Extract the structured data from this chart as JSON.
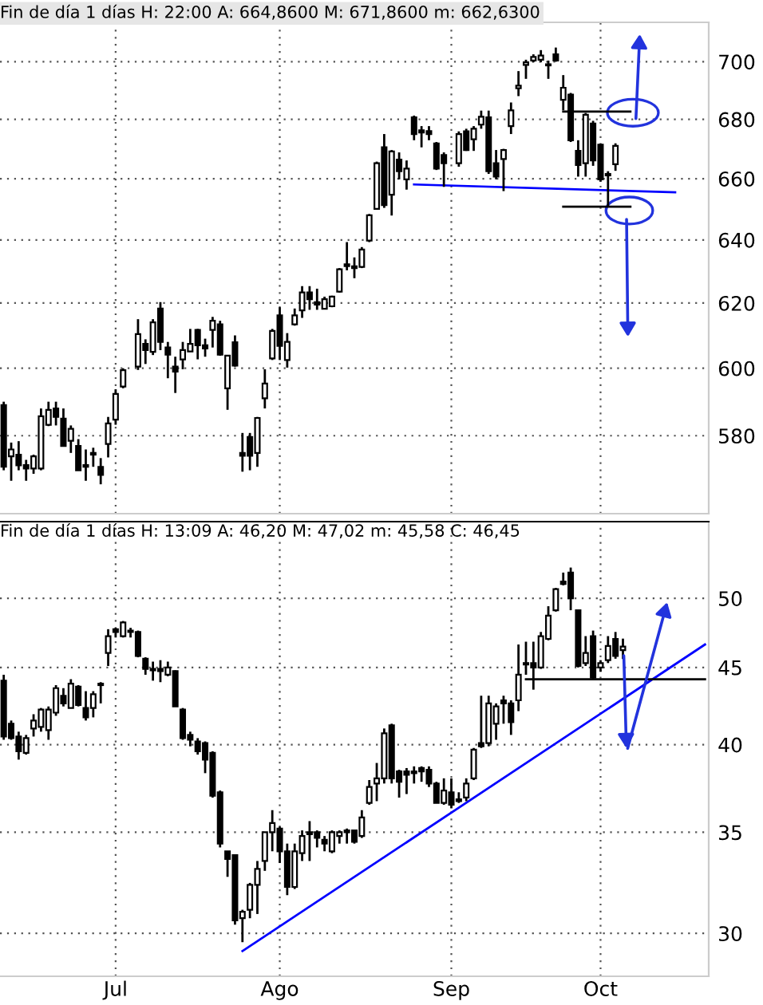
{
  "chart_data": [
    {
      "type": "candlestick",
      "title": "Fin de día 1 días H: 22:00 A: 664,8600 M: 671,8600 m: 662,6300",
      "log": true,
      "grid": true,
      "tick_labels": "y",
      "categories": [
        null,
        null,
        null,
        null,
        null,
        null,
        null,
        null,
        null,
        null,
        null,
        null,
        null,
        null,
        null,
        null,
        null,
        null,
        null,
        null,
        null,
        null,
        null,
        null,
        null,
        null,
        null,
        null,
        null,
        null,
        null,
        null,
        null,
        null,
        null,
        null,
        null,
        null,
        null,
        null,
        null,
        null,
        null,
        null,
        null,
        null,
        null,
        null,
        null,
        null,
        null,
        null,
        null,
        null,
        null,
        null,
        null,
        null,
        null,
        null,
        null,
        null,
        null,
        null,
        null,
        null,
        null,
        null,
        null,
        null,
        null,
        null,
        null,
        null,
        null,
        null,
        null,
        null,
        null,
        null,
        null,
        null,
        null,
        null,
        null,
        null,
        null,
        null,
        null,
        null,
        null,
        null,
        null,
        null,
        null
      ],
      "ylim": [
        557.7,
        714
      ],
      "yticks": [
        580,
        600,
        620,
        640,
        660,
        680,
        700
      ],
      "ohlc": [
        [
          589,
          590,
          570,
          571
        ],
        [
          574,
          578,
          567,
          576
        ],
        [
          574.5,
          578.4,
          570,
          571.4
        ],
        [
          571.5,
          573,
          567,
          570.5
        ],
        [
          570.5,
          574.5,
          569,
          574
        ],
        [
          570.5,
          588,
          570,
          585.7
        ],
        [
          583.2,
          590,
          582.8,
          587.6
        ],
        [
          588,
          590,
          583,
          585.5
        ],
        [
          585,
          588,
          577,
          577
        ],
        [
          578.5,
          583,
          575,
          582
        ],
        [
          577,
          579,
          570,
          570
        ],
        [
          571.5,
          576,
          567,
          571
        ],
        [
          575,
          576.5,
          571,
          574.5
        ],
        [
          571,
          573.5,
          566,
          568.7
        ],
        [
          577.6,
          585.5,
          573.7,
          583.6
        ],
        [
          584.7,
          593.7,
          583.2,
          592.3
        ],
        [
          594.5,
          600,
          594,
          599.4
        ],
        null,
        [
          600.5,
          615,
          599.5,
          610.4
        ],
        [
          607.4,
          608.8,
          601.3,
          605.5
        ],
        [
          605,
          615,
          604,
          614
        ],
        [
          618.3,
          620.3,
          605.5,
          608
        ],
        [
          606.3,
          608,
          597,
          604.1
        ],
        [
          600.5,
          603.5,
          592.6,
          599
        ],
        [
          602.7,
          608,
          599.7,
          605.5
        ],
        [
          605.1,
          612,
          605,
          607.4
        ],
        [
          611.7,
          612,
          602.7,
          607
        ],
        [
          607,
          609,
          603.5,
          606
        ],
        [
          611.7,
          615.7,
          606.3,
          614.5
        ],
        [
          613.4,
          614.5,
          603.8,
          604.1
        ],
        [
          594,
          604,
          587.6,
          603.8
        ],
        [
          607.9,
          610,
          600.5,
          600.8
        ],
        [
          575,
          580.8,
          569.6,
          574.2
        ],
        [
          579.6,
          580.8,
          570,
          574.2
        ],
        [
          575,
          585.5,
          571,
          585.2
        ],
        [
          591,
          599.7,
          588,
          595.4
        ],
        [
          603,
          612,
          602.5,
          611.4
        ],
        [
          616.2,
          618.7,
          602.5,
          606.8
        ],
        [
          602.5,
          610.7,
          600.2,
          608
        ],
        [
          613.4,
          618.3,
          613,
          616.2
        ],
        [
          617.7,
          625.3,
          615.4,
          623.3
        ],
        [
          623.3,
          625.3,
          617.9,
          621.2
        ],
        [
          620.3,
          624.5,
          617.9,
          619.5
        ],
        [
          618.2,
          622,
          618,
          621.2
        ],
        [
          619,
          622.3,
          618.7,
          622
        ],
        [
          623.6,
          631,
          623.3,
          630.6
        ],
        [
          632.2,
          639.3,
          630.3,
          631.6
        ],
        [
          631.6,
          634.4,
          627.8,
          631
        ],
        [
          631.4,
          637.7,
          631,
          636.9
        ],
        [
          639.8,
          648.4,
          639.3,
          648
        ],
        [
          650.1,
          665.7,
          650,
          665.2
        ],
        [
          670.5,
          675,
          650.4,
          651.3
        ],
        [
          654.7,
          669.6,
          647.9,
          669.1
        ],
        [
          666.4,
          668.8,
          659.8,
          662.5
        ],
        [
          659.8,
          666.1,
          656.4,
          663.4
        ],
        [
          680.7,
          681.3,
          672.9,
          675
        ],
        [
          676.3,
          677.7,
          670.5,
          675.5
        ],
        [
          676,
          677.7,
          672.9,
          675
        ],
        [
          671.8,
          672.3,
          662.9,
          663.4
        ],
        [
          667.9,
          668.8,
          657.3,
          665.2
        ],
        null,
        [
          665.2,
          675.9,
          664,
          675
        ],
        [
          675.9,
          676.8,
          669.3,
          669.6
        ],
        [
          673.2,
          677.7,
          669.3,
          676.8
        ],
        [
          678.2,
          683,
          676.8,
          680.9
        ],
        [
          680.7,
          683,
          661.6,
          662.5
        ],
        [
          665.2,
          669.6,
          659.8,
          660.7
        ],
        [
          666.6,
          670,
          655.9,
          669.6
        ],
        [
          677.7,
          685.8,
          675,
          683.1
        ],
        [
          690.7,
          696.7,
          688,
          691.6
        ],
        [
          698.9,
          700.7,
          694,
          699.8
        ],
        [
          700.4,
          702.6,
          699.8,
          701.7
        ],
        [
          700.7,
          704.1,
          699.8,
          702.2
        ],
        [
          699.1,
          700.4,
          694,
          698.7
        ],
        [
          702.6,
          705,
          700,
          700.4
        ],
        [
          686.7,
          695.3,
          683.1,
          690.9
        ],
        [
          688.5,
          689.1,
          672.3,
          672.9
        ],
        [
          669.3,
          672.9,
          660.7,
          664.6
        ],
        [
          665.2,
          682.2,
          660.7,
          681.6
        ],
        [
          678.6,
          679.5,
          664.3,
          666.1
        ],
        [
          671.4,
          671.8,
          659,
          659.8
        ],
        [
          661.6,
          662.5,
          651,
          661.1
        ],
        [
          664.86,
          671.86,
          662.63,
          671
        ],
        null,
        null,
        null,
        null,
        null,
        null,
        null,
        null,
        null,
        null,
        null,
        null
      ],
      "series": [
        {
          "type": "line",
          "color": "#0000ff",
          "values": [
            null,
            null,
            null,
            null,
            null,
            null,
            null,
            null,
            null,
            null,
            null,
            null,
            null,
            null,
            null,
            null,
            null,
            null,
            null,
            null,
            null,
            null,
            null,
            null,
            null,
            null,
            null,
            null,
            null,
            null,
            null,
            null,
            null,
            null,
            null,
            null,
            null,
            null,
            null,
            null,
            null,
            null,
            null,
            null,
            null,
            null,
            null,
            null,
            null,
            null,
            null,
            null,
            null,
            null,
            null,
            658.1,
            null,
            null,
            null,
            null,
            null,
            null,
            null,
            null,
            null,
            null,
            null,
            null,
            null,
            null,
            null,
            null,
            null,
            null,
            null,
            null,
            null,
            null,
            null,
            null,
            null,
            null,
            null,
            null,
            null,
            null,
            null,
            null,
            null,
            null,
            655.5,
            null,
            null,
            null,
            null
          ]
        },
        {
          "type": "line",
          "color": "#000000",
          "values": [
            null,
            null,
            null,
            null,
            null,
            null,
            null,
            null,
            null,
            null,
            null,
            null,
            null,
            null,
            null,
            null,
            null,
            null,
            null,
            null,
            null,
            null,
            null,
            null,
            null,
            null,
            null,
            null,
            null,
            null,
            null,
            null,
            null,
            null,
            null,
            null,
            null,
            null,
            null,
            null,
            null,
            null,
            null,
            null,
            null,
            null,
            null,
            null,
            null,
            null,
            null,
            null,
            null,
            null,
            null,
            null,
            null,
            null,
            null,
            null,
            null,
            null,
            null,
            null,
            null,
            null,
            null,
            null,
            null,
            null,
            null,
            null,
            null,
            null,
            null,
            682.7,
            null,
            null,
            null,
            null,
            null,
            null,
            null,
            null,
            682.7,
            null,
            null,
            null,
            null,
            null,
            null,
            null,
            null,
            null,
            null
          ]
        },
        {
          "type": "line",
          "color": "#000000",
          "values": [
            null,
            null,
            null,
            null,
            null,
            null,
            null,
            null,
            null,
            null,
            null,
            null,
            null,
            null,
            null,
            null,
            null,
            null,
            null,
            null,
            null,
            null,
            null,
            null,
            null,
            null,
            null,
            null,
            null,
            null,
            null,
            null,
            null,
            null,
            null,
            null,
            null,
            null,
            null,
            null,
            null,
            null,
            null,
            null,
            null,
            null,
            null,
            null,
            null,
            null,
            null,
            null,
            null,
            null,
            null,
            null,
            null,
            null,
            null,
            null,
            null,
            null,
            null,
            null,
            null,
            null,
            null,
            null,
            null,
            null,
            null,
            null,
            null,
            null,
            null,
            650.8,
            null,
            null,
            null,
            null,
            null,
            null,
            null,
            null,
            650.8,
            null,
            null,
            null,
            null,
            null,
            null,
            null,
            null,
            null,
            null
          ]
        }
      ]
    },
    {
      "type": "candlestick",
      "title": "Fin de día 1 días H: 13:09 A: 46,20 M: 47,02 m: 45,58 C: 46,45",
      "log": true,
      "grid": true,
      "categories": [
        null,
        null,
        null,
        null,
        null,
        null,
        null,
        null,
        null,
        null,
        null,
        null,
        null,
        null,
        null,
        "Jul",
        null,
        null,
        null,
        null,
        null,
        null,
        null,
        null,
        null,
        null,
        null,
        null,
        null,
        null,
        null,
        null,
        null,
        null,
        null,
        null,
        null,
        "Ago",
        null,
        null,
        null,
        null,
        null,
        null,
        null,
        null,
        null,
        null,
        null,
        null,
        null,
        null,
        null,
        null,
        null,
        null,
        null,
        null,
        null,
        null,
        "Sep",
        null,
        null,
        null,
        null,
        null,
        null,
        null,
        null,
        null,
        null,
        null,
        null,
        null,
        null,
        null,
        null,
        null,
        null,
        null,
        "Oct",
        null,
        null,
        null,
        null,
        null,
        null,
        null,
        null,
        null,
        null,
        null,
        null,
        null,
        null
      ],
      "ylim": [
        28.1,
        56.2
      ],
      "yticks": [
        30,
        35,
        40,
        45,
        50
      ],
      "ohlc": [
        [
          44.1,
          44.5,
          40.3,
          40.5
        ],
        [
          41.3,
          41.5,
          40.3,
          40.4
        ],
        [
          40.5,
          40.8,
          39.1,
          39.6
        ],
        [
          39.5,
          40.6,
          39.4,
          40.4
        ],
        [
          41.0,
          41.9,
          40.5,
          41.5
        ],
        [
          41.1,
          42.3,
          40.8,
          42.2
        ],
        [
          40.9,
          42.4,
          40.3,
          42.2
        ],
        [
          42.0,
          43.8,
          41.8,
          43.6
        ],
        [
          43.1,
          43.6,
          42.4,
          42.6
        ],
        [
          42.3,
          44.2,
          42.3,
          43.9
        ],
        [
          43.7,
          43.8,
          42.4,
          42.5
        ],
        [
          42.3,
          43.4,
          41.5,
          41.7
        ],
        [
          42.3,
          43.4,
          41.7,
          43.2
        ],
        [
          43.8,
          44.0,
          42.6,
          43.9
        ],
        [
          46.0,
          47.7,
          45.1,
          47.2
        ],
        [
          47.7,
          47.8,
          47.1,
          47.5
        ],
        [
          47.2,
          48.3,
          47.1,
          48.2
        ],
        [
          47.6,
          47.8,
          47.1,
          47.5
        ],
        [
          47.5,
          47.6,
          45.7,
          45.8
        ],
        [
          45.6,
          45.7,
          44.5,
          44.9
        ],
        [
          44.9,
          45.4,
          44.1,
          44.8
        ],
        [
          44.9,
          45.5,
          44.0,
          44.75
        ],
        [
          44.5,
          45.4,
          44.4,
          45.0
        ],
        [
          44.75,
          44.8,
          42.4,
          42.4
        ],
        [
          42.2,
          42.3,
          40.3,
          40.4
        ],
        [
          40.6,
          40.8,
          39.9,
          40.3
        ],
        [
          40.2,
          40.4,
          39.4,
          39.6
        ],
        [
          40.1,
          40.2,
          38.3,
          39.1
        ],
        [
          39.5,
          39.6,
          36.9,
          37.0
        ],
        [
          37.2,
          37.3,
          34.2,
          34.4
        ],
        [
          34.0,
          34.0,
          32.7,
          33.6
        ],
        [
          33.8,
          33.8,
          30.4,
          30.6
        ],
        [
          30.7,
          31.1,
          29.6,
          31.0
        ],
        [
          31.1,
          32.4,
          30.7,
          32.3
        ],
        [
          32.3,
          33.5,
          30.9,
          33.1
        ],
        [
          33.5,
          35.0,
          33.0,
          35.0
        ],
        [
          35.0,
          36.2,
          34.0,
          35.5
        ],
        [
          35.2,
          35.3,
          33.4,
          34.0
        ],
        [
          34.0,
          34.4,
          31.8,
          32.2
        ],
        [
          32.2,
          34.4,
          32.1,
          34.0
        ],
        [
          33.9,
          35.1,
          33.5,
          34.8
        ],
        [
          35.0,
          35.6,
          33.5,
          34.9
        ],
        [
          35.0,
          35.1,
          34.2,
          34.7
        ],
        [
          34.6,
          34.8,
          34.0,
          34.4
        ],
        [
          34.0,
          35.1,
          33.9,
          35.0
        ],
        [
          34.8,
          35.1,
          34.4,
          35.0
        ],
        [
          35.1,
          35.2,
          34.4,
          35.0
        ],
        [
          35.1,
          35.1,
          34.4,
          34.5
        ],
        [
          34.8,
          36.2,
          34.7,
          35.8
        ],
        [
          36.6,
          37.9,
          36.5,
          37.5
        ],
        [
          37.7,
          38.9,
          36.7,
          38.0
        ],
        [
          38.0,
          41.0,
          37.7,
          40.7
        ],
        [
          41.2,
          41.3,
          37.7,
          38.0
        ],
        [
          38.4,
          38.5,
          36.9,
          37.8
        ],
        [
          38.4,
          38.6,
          37.1,
          38.2
        ],
        [
          38.4,
          38.7,
          37.7,
          38.3
        ],
        [
          38.6,
          38.7,
          37.8,
          38.4
        ],
        [
          38.5,
          38.7,
          37.5,
          37.7
        ],
        [
          37.7,
          37.8,
          36.6,
          36.6
        ],
        [
          36.6,
          38.0,
          36.5,
          37.3
        ],
        [
          37.2,
          38.0,
          36.3,
          36.5
        ],
        [
          36.8,
          37.2,
          36.6,
          36.7
        ],
        [
          36.9,
          38.0,
          36.7,
          37.7
        ],
        [
          38.0,
          39.8,
          37.9,
          39.7
        ],
        [
          40.1,
          43.1,
          39.8,
          39.9
        ],
        [
          40.1,
          43.1,
          39.9,
          42.6
        ],
        [
          41.3,
          42.6,
          40.3,
          42.4
        ],
        [
          42.8,
          43.1,
          41.3,
          42.6
        ],
        [
          42.6,
          42.8,
          40.6,
          41.4
        ],
        [
          42.8,
          46.6,
          42.1,
          44.5
        ],
        [
          45.3,
          46.8,
          44.5,
          45.2
        ],
        [
          45.3,
          46.8,
          43.5,
          45.0
        ],
        [
          45.0,
          47.5,
          44.9,
          47.2
        ],
        [
          47.0,
          49.4,
          46.9,
          48.7
        ],
        [
          49.1,
          50.8,
          49.0,
          50.7
        ],
        [
          51.3,
          52.0,
          51.0,
          51.1
        ],
        [
          52.0,
          52.4,
          49.1,
          50.0
        ],
        [
          49.1,
          49.1,
          45.0,
          45.1
        ],
        [
          45.3,
          47.2,
          45.1,
          46.0
        ],
        [
          47.2,
          47.6,
          44.2,
          44.3
        ],
        [
          45.0,
          45.5,
          44.7,
          45.3
        ],
        [
          45.5,
          47.2,
          45.3,
          46.5
        ],
        [
          47.0,
          47.5,
          45.6,
          45.8
        ],
        [
          46.2,
          47.02,
          45.58,
          46.45
        ],
        null,
        null,
        null,
        null,
        null,
        null,
        null,
        null,
        null,
        null,
        null
      ],
      "series": [
        {
          "type": "line",
          "color": "#0000ff",
          "values": [
            null,
            null,
            null,
            null,
            null,
            null,
            null,
            null,
            null,
            null,
            null,
            null,
            null,
            null,
            null,
            null,
            null,
            null,
            null,
            null,
            null,
            null,
            null,
            null,
            null,
            null,
            null,
            null,
            null,
            null,
            null,
            null,
            29.2,
            null,
            null,
            null,
            null,
            null,
            null,
            null,
            null,
            null,
            null,
            null,
            null,
            null,
            null,
            null,
            null,
            null,
            null,
            null,
            null,
            null,
            null,
            null,
            null,
            null,
            null,
            null,
            null,
            null,
            null,
            null,
            null,
            null,
            null,
            null,
            null,
            null,
            null,
            null,
            null,
            null,
            null,
            null,
            null,
            null,
            null,
            null,
            null,
            null,
            null,
            null,
            null,
            null,
            null,
            null,
            null,
            null,
            null,
            null,
            null,
            null,
            46.6
          ]
        },
        {
          "type": "line",
          "color": "#000000",
          "values": [
            null,
            null,
            null,
            null,
            null,
            null,
            null,
            null,
            null,
            null,
            null,
            null,
            null,
            null,
            null,
            null,
            null,
            null,
            null,
            null,
            null,
            null,
            null,
            null,
            null,
            null,
            null,
            null,
            null,
            null,
            null,
            null,
            null,
            null,
            null,
            null,
            null,
            null,
            null,
            null,
            null,
            null,
            null,
            null,
            null,
            null,
            null,
            null,
            null,
            null,
            null,
            null,
            null,
            null,
            null,
            null,
            null,
            null,
            null,
            null,
            null,
            null,
            null,
            null,
            null,
            null,
            null,
            null,
            null,
            null,
            44.2,
            null,
            null,
            null,
            null,
            null,
            null,
            null,
            null,
            null,
            null,
            null,
            null,
            null,
            null,
            null,
            null,
            null,
            null,
            null,
            null,
            null,
            null,
            null,
            44.2
          ]
        }
      ]
    }
  ]
}
